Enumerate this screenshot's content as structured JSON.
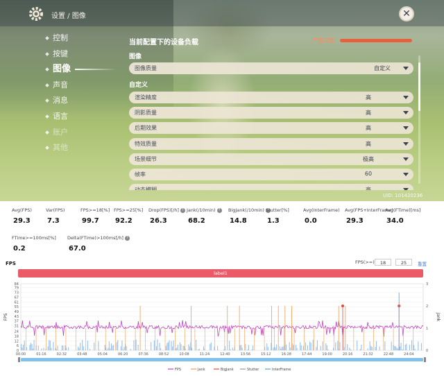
{
  "header": {
    "breadcrumb": "设置 / 图像",
    "close_label": "✕"
  },
  "menu": {
    "items": [
      {
        "label": "控制",
        "state": "normal"
      },
      {
        "label": "按键",
        "state": "normal"
      },
      {
        "label": "图像",
        "state": "active"
      },
      {
        "label": "声音",
        "state": "normal"
      },
      {
        "label": "消息",
        "state": "normal"
      },
      {
        "label": "语言",
        "state": "normal"
      },
      {
        "label": "账户",
        "state": "dim"
      },
      {
        "label": "其他",
        "state": "dim"
      }
    ]
  },
  "panel": {
    "load_title": "当前配置下的设备负载",
    "load_level": "严重过载",
    "load_level_color": "#e8613d",
    "section_image": "图像",
    "image_quality": {
      "label": "图像质量",
      "value": "自定义"
    },
    "section_custom": "自定义",
    "settings": [
      {
        "label": "渲染精度",
        "value": "高"
      },
      {
        "label": "阴影质量",
        "value": "高"
      },
      {
        "label": "后期效果",
        "value": "高"
      },
      {
        "label": "特效质量",
        "value": "高"
      },
      {
        "label": "场景细节",
        "value": "极高"
      },
      {
        "label": "帧率",
        "value": "60"
      },
      {
        "label": "动态模糊",
        "value": "高"
      }
    ],
    "uid": "UID: 101420236"
  },
  "stats": {
    "row1": [
      {
        "label": "Avg(FPS)",
        "value": "29.3",
        "help": false
      },
      {
        "label": "Var(FPS)",
        "value": "7.3",
        "help": false
      },
      {
        "label": "FPS>=18[%]",
        "value": "99.7",
        "help": false
      },
      {
        "label": "FPS>=25[%]",
        "value": "92.2",
        "help": false
      },
      {
        "label": "Drop(FPS)[/h]",
        "value": "26.3",
        "help": true
      },
      {
        "label": "Jank(/10min)",
        "value": "68.2",
        "help": true
      },
      {
        "label": "BigJank(/10min)",
        "value": "14.8",
        "help": true
      },
      {
        "label": "Stutter[%]",
        "value": "1.3",
        "help": false
      },
      {
        "label": "Avg(InterFrame)",
        "value": "0.0",
        "help": false
      },
      {
        "label": "Avg(FPS+InterFrame)",
        "value": "29.3",
        "help": false
      },
      {
        "label": "Avg(FTime)[ms]",
        "value": "34.0",
        "help": false
      }
    ],
    "row2": [
      {
        "label": "FTime>=100ms[%]",
        "value": "0.2",
        "help": false
      },
      {
        "label": "Delta(FTime)>100ms[/h]",
        "value": "67.0",
        "help": true
      }
    ]
  },
  "chart_controls": {
    "title": "FPS",
    "fps_filter_label": "FPS(>=)",
    "fps_threshold_1": "18",
    "fps_threshold_2": "25",
    "reset_label": "重置",
    "label_bar": "label1",
    "help_glyph": "?"
  },
  "chart_data": {
    "type": "line",
    "title": "FPS",
    "ylabel": "FPS",
    "y2label": "Jank",
    "ylim": [
      0,
      84
    ],
    "y2lim": [
      0,
      3
    ],
    "y_ticks": [
      0,
      6,
      12,
      18,
      24,
      31,
      37,
      43,
      49,
      55,
      61,
      67,
      73,
      79,
      84
    ],
    "y2_ticks": [
      0,
      1,
      2,
      3
    ],
    "x_ticks": [
      "00:00",
      "01:16",
      "02:32",
      "03:48",
      "05:04",
      "06:20",
      "07:36",
      "08:52",
      "10:08",
      "11:24",
      "12:40",
      "13:56",
      "15:12",
      "16:28",
      "17:44",
      "19:00",
      "20:16",
      "21:32",
      "22:48",
      "24:04"
    ],
    "x_max_seconds": 1500,
    "fps_series": {
      "name": "FPS",
      "typical": 29.3,
      "min": 17,
      "max": 38,
      "color": "#c040c0"
    },
    "jank_events_seconds": [
      445,
      635,
      770,
      815,
      935,
      960,
      985,
      1010,
      1185,
      1210
    ],
    "bigjank_events_seconds": [
      1200,
      1410
    ],
    "legend": [
      "FPS",
      "Jank",
      "BigJank",
      "Stutter",
      "InterFrame"
    ],
    "legend_colors": [
      "#c040c0",
      "#f39a4c",
      "#e8463c",
      "#9a9a9a",
      "#4aa3e0"
    ],
    "grid": true,
    "legend_position": "bottom"
  }
}
